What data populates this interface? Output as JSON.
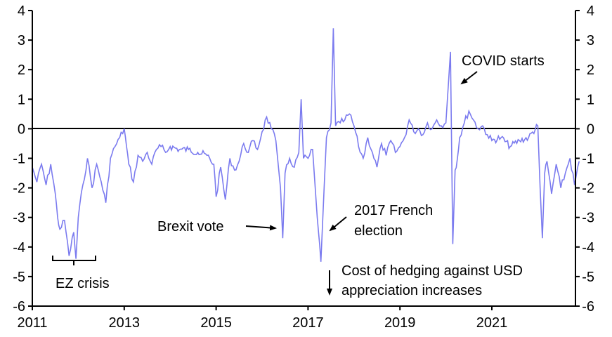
{
  "chart_data": {
    "type": "line",
    "title": "",
    "xlabel": "",
    "ylabel": "",
    "xlim": [
      2011,
      2022.9
    ],
    "ylim": [
      -6,
      4
    ],
    "grid": false,
    "x_ticks": [
      "2011",
      "2013",
      "2015",
      "2017",
      "2019",
      "2021"
    ],
    "y_ticks_left": [
      "4",
      "3",
      "2",
      "1",
      "0",
      "-1",
      "-2",
      "-3",
      "-4",
      "-5",
      "-6"
    ],
    "y_ticks_right": [
      "4",
      "3",
      "2",
      "1",
      "0",
      "-1",
      "-2",
      "-3",
      "-4",
      "-5",
      "-6"
    ],
    "line_color": "#7b7bef",
    "series": [
      {
        "name": "series",
        "x": [
          2011.0,
          2011.1,
          2011.2,
          2011.3,
          2011.4,
          2011.5,
          2011.55,
          2011.6,
          2011.7,
          2011.8,
          2011.9,
          2011.95,
          2012.0,
          2012.1,
          2012.2,
          2012.3,
          2012.4,
          2012.5,
          2012.6,
          2012.7,
          2012.8,
          2012.9,
          2013.0,
          2013.05,
          2013.1,
          2013.2,
          2013.3,
          2013.4,
          2013.5,
          2013.6,
          2013.7,
          2013.8,
          2013.9,
          2014.0,
          2014.2,
          2014.4,
          2014.6,
          2014.8,
          2014.95,
          2015.0,
          2015.1,
          2015.2,
          2015.3,
          2015.4,
          2015.5,
          2015.6,
          2015.7,
          2015.8,
          2015.9,
          2016.0,
          2016.1,
          2016.2,
          2016.3,
          2016.4,
          2016.45,
          2016.5,
          2016.6,
          2016.7,
          2016.8,
          2016.85,
          2016.9,
          2017.0,
          2017.1,
          2017.2,
          2017.28,
          2017.35,
          2017.4,
          2017.5,
          2017.55,
          2017.6,
          2017.7,
          2017.8,
          2017.9,
          2018.0,
          2018.1,
          2018.2,
          2018.3,
          2018.4,
          2018.5,
          2018.6,
          2018.7,
          2018.8,
          2018.9,
          2019.0,
          2019.1,
          2019.2,
          2019.3,
          2019.4,
          2019.5,
          2019.6,
          2019.7,
          2019.8,
          2019.9,
          2020.0,
          2020.1,
          2020.15,
          2020.2,
          2020.25,
          2020.3,
          2020.4,
          2020.5,
          2020.6,
          2020.7,
          2020.8,
          2020.9,
          2021.0,
          2021.2,
          2021.4,
          2021.6,
          2021.8,
          2022.0,
          2022.05,
          2022.1,
          2022.15,
          2022.2,
          2022.3,
          2022.4,
          2022.5,
          2022.6,
          2022.7,
          2022.8,
          2022.9
        ],
        "y": [
          -1.3,
          -1.8,
          -1.2,
          -1.9,
          -1.2,
          -2.2,
          -3.0,
          -3.4,
          -3.1,
          -4.3,
          -3.5,
          -4.4,
          -3.0,
          -1.9,
          -1.0,
          -2.0,
          -1.2,
          -1.8,
          -2.5,
          -1.0,
          -0.6,
          -0.3,
          0.0,
          -0.6,
          -1.2,
          -1.8,
          -0.9,
          -1.1,
          -0.8,
          -1.2,
          -0.7,
          -0.6,
          -0.8,
          -0.6,
          -0.7,
          -0.7,
          -0.8,
          -0.9,
          -1.2,
          -2.3,
          -1.3,
          -2.4,
          -1.0,
          -1.4,
          -1.1,
          -0.5,
          -0.8,
          -0.4,
          -0.7,
          -0.1,
          0.4,
          0.0,
          -0.4,
          -2.0,
          -3.7,
          -1.5,
          -1.0,
          -1.3,
          -0.8,
          1.0,
          -1.0,
          -1.0,
          -0.7,
          -3.0,
          -4.5,
          -2.0,
          -0.3,
          0.2,
          3.4,
          0.1,
          0.2,
          0.3,
          0.5,
          0.1,
          -0.6,
          -1.0,
          -0.3,
          -0.8,
          -1.3,
          -0.5,
          -0.9,
          -0.4,
          -0.8,
          -0.6,
          -0.3,
          0.3,
          -0.1,
          0.0,
          -0.2,
          0.2,
          0.0,
          0.3,
          0.1,
          0.2,
          2.6,
          -3.9,
          -1.4,
          -1.0,
          -0.3,
          0.2,
          0.6,
          0.3,
          0.0,
          0.1,
          -0.2,
          -0.4,
          -0.3,
          -0.6,
          -0.4,
          -0.3,
          0.1,
          -2.0,
          -3.7,
          -1.5,
          -1.1,
          -2.2,
          -1.2,
          -2.0,
          -1.5,
          -1.0,
          -1.9,
          -1.1
        ]
      }
    ],
    "annotations": [
      {
        "text": "EZ crisis"
      },
      {
        "text": "Brexit vote"
      },
      {
        "text": "2017 French",
        "text2": "election"
      },
      {
        "text": "COVID starts"
      },
      {
        "text": "Cost of hedging against USD",
        "text2": "appreciation increases"
      }
    ]
  }
}
